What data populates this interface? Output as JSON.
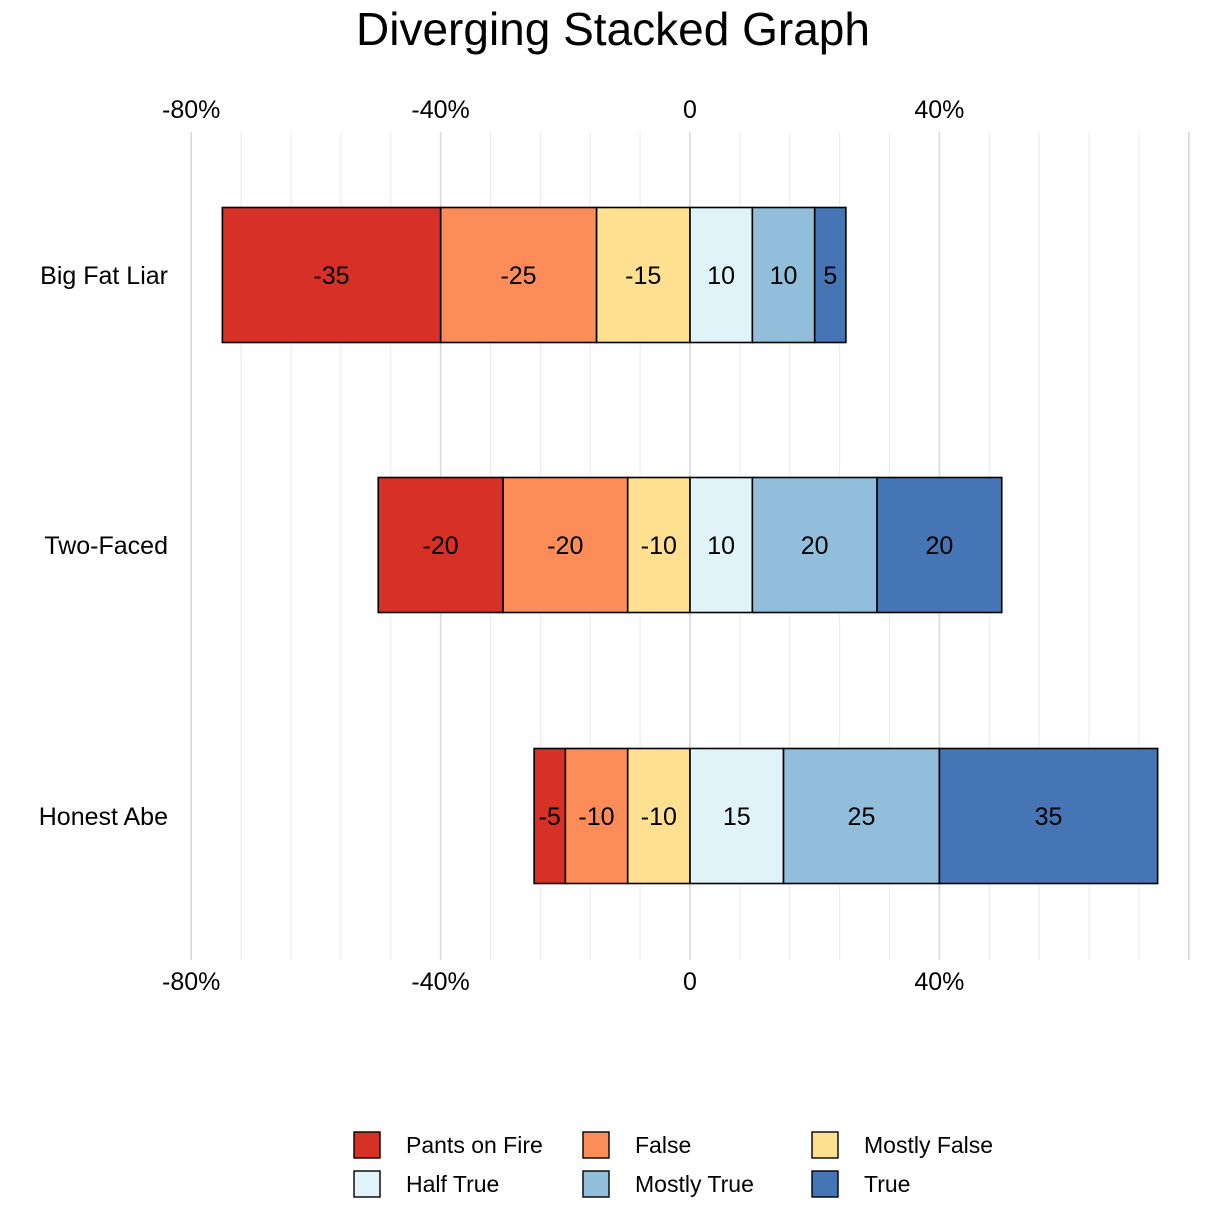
{
  "chart_data": {
    "type": "bar",
    "orientation": "horizontal",
    "stacking": "diverging",
    "title": "Diverging Stacked Graph",
    "xlabel": "",
    "ylabel": "",
    "xlim": [
      -80,
      80
    ],
    "x_ticks": [
      {
        "value": -80,
        "label": "-80%"
      },
      {
        "value": -40,
        "label": "-40%"
      },
      {
        "value": 0,
        "label": "0"
      },
      {
        "value": 40,
        "label": "40%"
      }
    ],
    "grid": true,
    "legend_position": "bottom",
    "categories": [
      "Big Fat Liar",
      "Two-Faced",
      "Honest Abe"
    ],
    "series": [
      {
        "name": "Pants on Fire",
        "color": "#d73027",
        "values": [
          -35,
          -20,
          -5
        ]
      },
      {
        "name": "False",
        "color": "#fc8d59",
        "values": [
          -25,
          -20,
          -10
        ]
      },
      {
        "name": "Mostly False",
        "color": "#fee090",
        "values": [
          -15,
          -10,
          -10
        ]
      },
      {
        "name": "Half True",
        "color": "#e0f3f8",
        "values": [
          10,
          10,
          15
        ]
      },
      {
        "name": "Mostly True",
        "color": "#91bfdb",
        "values": [
          10,
          20,
          25
        ]
      },
      {
        "name": "True",
        "color": "#4575b4",
        "values": [
          5,
          20,
          35
        ]
      }
    ]
  }
}
